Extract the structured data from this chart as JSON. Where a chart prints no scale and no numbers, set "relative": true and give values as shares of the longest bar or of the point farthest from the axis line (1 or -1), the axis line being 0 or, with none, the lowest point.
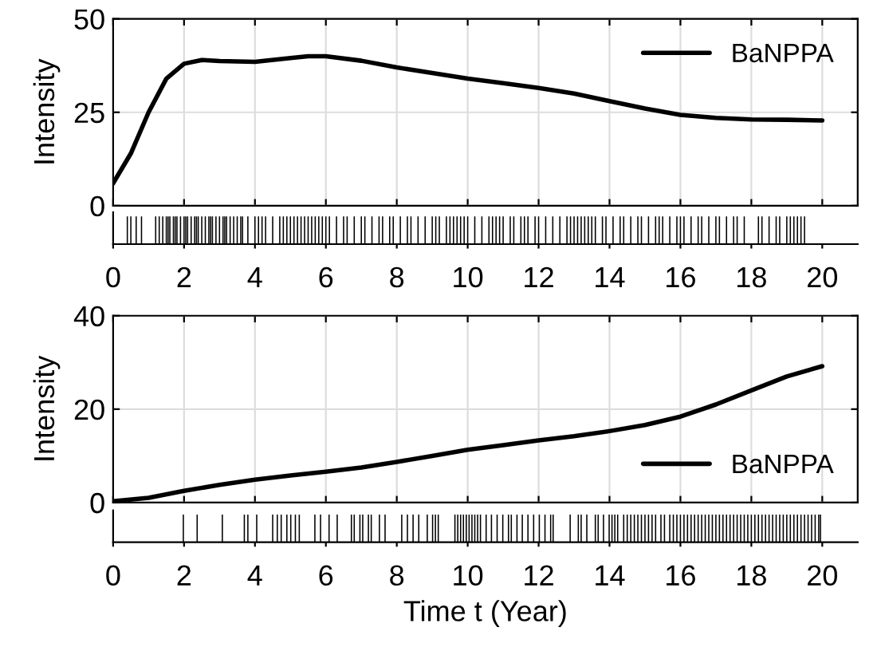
{
  "chart_data": [
    {
      "type": "line",
      "ylabel": "Intensity",
      "xlim": [
        0,
        21
      ],
      "ylim": [
        0,
        50
      ],
      "xticks": [
        0,
        2,
        4,
        6,
        8,
        10,
        12,
        14,
        16,
        18,
        20
      ],
      "yticks": [
        0,
        25,
        50
      ],
      "grid": true,
      "legend": "top right",
      "tick_labels": "y",
      "series": [
        {
          "name": "BaNPPA",
          "color": "#000000",
          "x": [
            0,
            0.5,
            1,
            1.5,
            2,
            2.5,
            3,
            4,
            5,
            5.5,
            6,
            7,
            8,
            9,
            10,
            11,
            12,
            13,
            14,
            15,
            16,
            17,
            18,
            19,
            20
          ],
          "values": [
            6,
            14,
            25,
            34,
            38,
            39,
            38.7,
            38.5,
            39.5,
            40,
            40,
            38.8,
            37,
            35.5,
            34,
            32.8,
            31.5,
            30,
            28,
            26,
            24.3,
            23.5,
            23.1,
            23,
            22.8
          ]
        }
      ]
    },
    {
      "type": "bar",
      "relative": true,
      "xlim": [
        0,
        21
      ],
      "xticks": [
        0,
        2,
        4,
        6,
        8,
        10,
        12,
        14,
        16,
        18,
        20
      ],
      "tick_labels": "x",
      "series": [
        {
          "color": "#000000",
          "x": [
            0.4,
            0.5,
            0.65,
            0.8,
            1.2,
            1.3,
            1.4,
            1.5,
            1.55,
            1.6,
            1.7,
            1.75,
            1.8,
            1.9,
            2.0,
            2.05,
            2.1,
            2.2,
            2.3,
            2.35,
            2.4,
            2.5,
            2.6,
            2.7,
            2.75,
            2.8,
            2.9,
            3.0,
            3.1,
            3.15,
            3.2,
            3.3,
            3.4,
            3.5,
            3.6,
            3.65,
            3.8,
            4.0,
            4.1,
            4.2,
            4.3,
            4.5,
            4.7,
            4.8,
            4.9,
            5.0,
            5.1,
            5.2,
            5.3,
            5.4,
            5.5,
            5.6,
            5.7,
            5.8,
            5.9,
            6.0,
            6.1,
            6.3,
            6.5,
            6.6,
            6.8,
            7.0,
            7.1,
            7.3,
            7.5,
            7.6,
            7.8,
            7.9,
            8.1,
            8.3,
            8.4,
            8.6,
            8.8,
            9.0,
            9.1,
            9.2,
            9.4,
            9.5,
            9.6,
            9.7,
            9.8,
            9.9,
            10.0,
            10.2,
            10.4,
            10.6,
            10.7,
            10.8,
            10.9,
            11.0,
            11.2,
            11.3,
            11.5,
            11.6,
            11.7,
            11.9,
            12.0,
            12.2,
            12.4,
            12.6,
            12.8,
            12.9,
            13.0,
            13.1,
            13.2,
            13.3,
            13.4,
            13.5,
            13.6,
            13.8,
            13.9,
            14.1,
            14.3,
            14.4,
            14.6,
            14.8,
            14.9,
            15.1,
            15.3,
            15.4,
            15.5,
            15.7,
            15.9,
            16.0,
            16.1,
            16.3,
            16.5,
            16.6,
            16.8,
            17.0,
            17.1,
            17.3,
            17.5,
            17.6,
            17.8,
            18.2,
            18.3,
            18.5,
            18.7,
            18.8,
            19.0,
            19.1,
            19.2,
            19.3,
            19.4,
            19.5
          ],
          "values": [
            1,
            1,
            1,
            1,
            1,
            1,
            1,
            1,
            1,
            1,
            1,
            1,
            1,
            1,
            1,
            1,
            1,
            1,
            1,
            1,
            1,
            1,
            1,
            1,
            1,
            1,
            1,
            1,
            1,
            1,
            1,
            1,
            1,
            1,
            1,
            1,
            1,
            1,
            1,
            1,
            1,
            1,
            1,
            1,
            1,
            1,
            1,
            1,
            1,
            1,
            1,
            1,
            1,
            1,
            1,
            1,
            1,
            1,
            1,
            1,
            1,
            1,
            1,
            1,
            1,
            1,
            1,
            1,
            1,
            1,
            1,
            1,
            1,
            1,
            1,
            1,
            1,
            1,
            1,
            1,
            1,
            1,
            1,
            1,
            1,
            1,
            1,
            1,
            1,
            1,
            1,
            1,
            1,
            1,
            1,
            1,
            1,
            1,
            1,
            1,
            1,
            1,
            1,
            1,
            1,
            1,
            1,
            1,
            1,
            1,
            1,
            1,
            1,
            1,
            1,
            1,
            1,
            1,
            1,
            1,
            1,
            1,
            1,
            1,
            1,
            1,
            1,
            1,
            1,
            1,
            1,
            1,
            1,
            1,
            1,
            1,
            1,
            1,
            1,
            1,
            1,
            1,
            1,
            1,
            1,
            1
          ]
        }
      ]
    },
    {
      "type": "line",
      "ylabel": "Intensity",
      "xlim": [
        0,
        21
      ],
      "ylim": [
        0,
        40
      ],
      "xticks": [
        0,
        2,
        4,
        6,
        8,
        10,
        12,
        14,
        16,
        18,
        20
      ],
      "yticks": [
        0,
        20,
        40
      ],
      "grid": true,
      "legend": "bottom right",
      "tick_labels": "y",
      "series": [
        {
          "name": "BaNPPA",
          "color": "#000000",
          "x": [
            0,
            1,
            2,
            3,
            4,
            5,
            6,
            7,
            8,
            9,
            10,
            11,
            12,
            13,
            14,
            15,
            16,
            17,
            18,
            19,
            20
          ],
          "values": [
            0.3,
            1,
            2.5,
            3.8,
            4.9,
            5.8,
            6.6,
            7.5,
            8.7,
            10,
            11.3,
            12.3,
            13.3,
            14.2,
            15.3,
            16.6,
            18.4,
            21,
            24,
            27,
            29.2
          ]
        }
      ]
    },
    {
      "type": "bar",
      "relative": true,
      "xlabel": "Time t (Year)",
      "xlim": [
        0,
        21
      ],
      "xticks": [
        0,
        2,
        4,
        6,
        8,
        10,
        12,
        14,
        16,
        18,
        20
      ],
      "tick_labels": "x",
      "series": [
        {
          "color": "#000000",
          "x": [
            1.98,
            2.37,
            3.08,
            3.7,
            3.8,
            4.05,
            4.5,
            4.63,
            4.74,
            4.9,
            5.01,
            5.14,
            5.25,
            5.69,
            5.85,
            6.09,
            6.32,
            6.72,
            6.8,
            6.96,
            7.04,
            7.2,
            7.28,
            7.51,
            7.67,
            8.14,
            8.3,
            8.46,
            8.62,
            8.86,
            9.01,
            9.09,
            9.17,
            9.64,
            9.72,
            9.8,
            9.88,
            9.96,
            10.04,
            10.12,
            10.2,
            10.28,
            10.36,
            10.52,
            10.67,
            10.83,
            10.99,
            11.15,
            11.23,
            11.39,
            11.54,
            11.7,
            11.86,
            12.02,
            12.18,
            12.34,
            12.41,
            12.89,
            13.12,
            13.2,
            13.36,
            13.6,
            13.68,
            13.83,
            13.99,
            14.07,
            14.15,
            14.23,
            14.4,
            14.5,
            14.6,
            14.7,
            14.8,
            14.9,
            15.0,
            15.1,
            15.2,
            15.3,
            15.45,
            15.55,
            15.7,
            15.8,
            15.9,
            16.0,
            16.1,
            16.2,
            16.3,
            16.4,
            16.5,
            16.6,
            16.7,
            16.8,
            16.9,
            17.0,
            17.1,
            17.2,
            17.3,
            17.4,
            17.5,
            17.6,
            17.7,
            17.8,
            17.9,
            18.0,
            18.1,
            18.2,
            18.3,
            18.4,
            18.5,
            18.6,
            18.7,
            18.8,
            18.9,
            19.0,
            19.1,
            19.2,
            19.3,
            19.4,
            19.5,
            19.6,
            19.7,
            19.8,
            19.9,
            19.95
          ],
          "values": [
            1,
            1,
            1,
            1,
            1,
            1,
            1,
            1,
            1,
            1,
            1,
            1,
            1,
            1,
            1,
            1,
            1,
            1,
            1,
            1,
            1,
            1,
            1,
            1,
            1,
            1,
            1,
            1,
            1,
            1,
            1,
            1,
            1,
            1,
            1,
            1,
            1,
            1,
            1,
            1,
            1,
            1,
            1,
            1,
            1,
            1,
            1,
            1,
            1,
            1,
            1,
            1,
            1,
            1,
            1,
            1,
            1,
            1,
            1,
            1,
            1,
            1,
            1,
            1,
            1,
            1,
            1,
            1,
            1,
            1,
            1,
            1,
            1,
            1,
            1,
            1,
            1,
            1,
            1,
            1,
            1,
            1,
            1,
            1,
            1,
            1,
            1,
            1,
            1,
            1,
            1,
            1,
            1,
            1,
            1,
            1,
            1,
            1,
            1,
            1,
            1,
            1,
            1,
            1,
            1,
            1,
            1,
            1,
            1,
            1,
            1,
            1,
            1,
            1,
            1,
            1,
            1,
            1,
            1,
            1,
            1,
            1,
            1,
            1
          ]
        }
      ]
    }
  ]
}
